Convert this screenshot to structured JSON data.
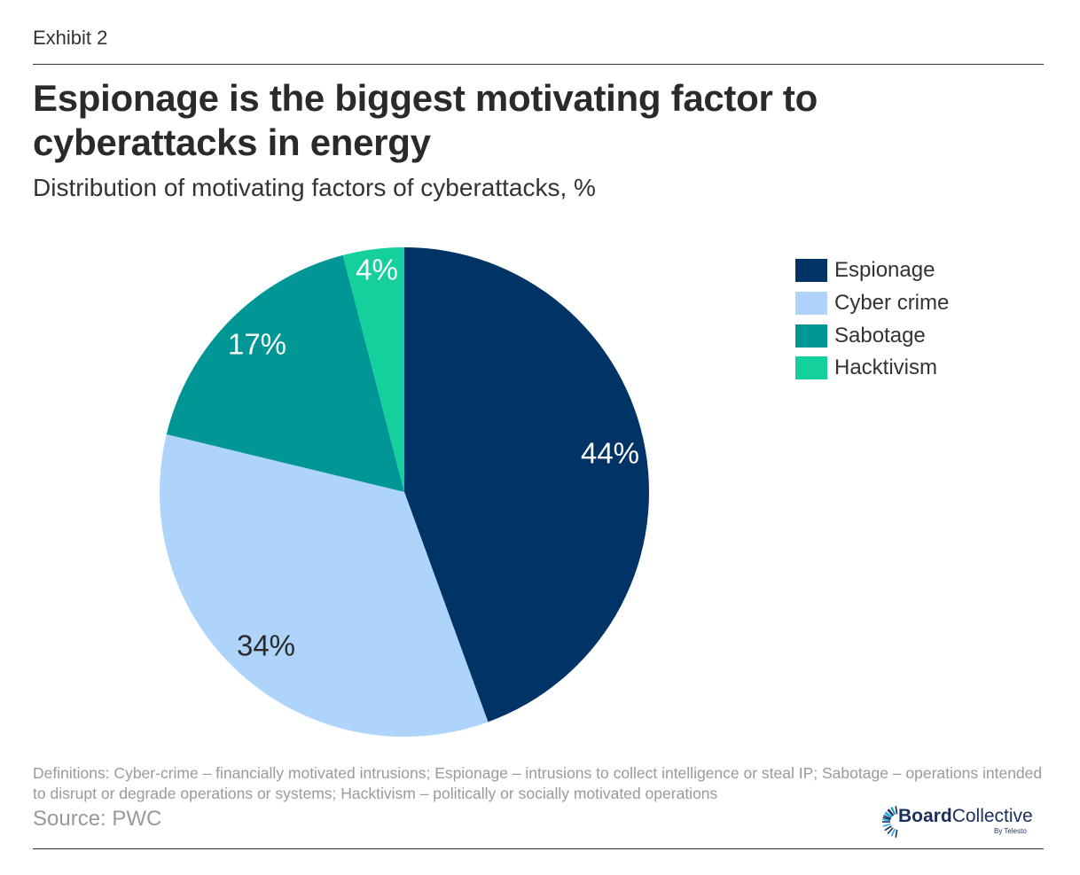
{
  "header": {
    "exhibit": "Exhibit 2",
    "title": "Espionage is the biggest motivating factor to cyberattacks in energy",
    "subtitle": "Distribution of motivating factors of cyberattacks, %"
  },
  "chart_data": {
    "type": "pie",
    "title": "Espionage is the biggest motivating factor to cyberattacks in energy",
    "subtitle": "Distribution of motivating factors of cyberattacks, %",
    "start_angle": "12 o'clock",
    "direction": "clockwise",
    "legend_position": "top-right",
    "slices": [
      {
        "label": "Espionage",
        "value": 44,
        "display": "44%",
        "color": "#003366",
        "label_color": "#ffffff"
      },
      {
        "label": "Cyber crime",
        "value": 34,
        "display": "34%",
        "color": "#aed4fc",
        "label_color": "#2b2b2b"
      },
      {
        "label": "Sabotage",
        "value": 17,
        "display": "17%",
        "color": "#009696",
        "label_color": "#ffffff"
      },
      {
        "label": "Hacktivism",
        "value": 4,
        "display": "4%",
        "color": "#14d09c",
        "label_color": "#ffffff"
      }
    ]
  },
  "footer": {
    "definitions": "Definitions: Cyber-crime – financially motivated intrusions; Espionage – intrusions to collect intelligence or steal IP; Sabotage – operations intended to disrupt or degrade operations or systems; Hacktivism – politically or socially motivated operations",
    "source": "Source: PWC",
    "logo_bold": "Board",
    "logo_regular": "Collective",
    "logo_sub": "By Telesto",
    "logo_color": "#1b2f5b",
    "logo_accent": "#22a7e0"
  }
}
